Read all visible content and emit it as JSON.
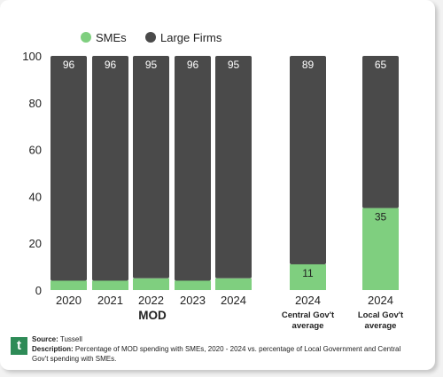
{
  "colors": {
    "sme": "#7fcf7f",
    "large": "#4a4a4a",
    "label_on_dark": "#ffffff",
    "label_on_light": "#222222"
  },
  "chart_data": {
    "type": "bar",
    "stacked": true,
    "ylim": [
      0,
      100
    ],
    "yticks": [
      "0",
      "20",
      "40",
      "60",
      "80",
      "100"
    ],
    "legend": {
      "position": "top-left",
      "entries": [
        "SMEs",
        "Large Firms"
      ]
    },
    "categories": [
      "2020",
      "2021",
      "2022",
      "2023",
      "2024",
      "2024",
      "2024"
    ],
    "category_sublabels": [
      "",
      "",
      "",
      "",
      "",
      "Central Gov't average",
      "Local Gov't average"
    ],
    "group_label": "MOD",
    "series": [
      {
        "name": "SMEs",
        "values": [
          4,
          4,
          5,
          4,
          5,
          11,
          35
        ],
        "labels": [
          "",
          "",
          "",
          "",
          "",
          "11",
          "35"
        ]
      },
      {
        "name": "Large Firms",
        "values": [
          96,
          96,
          95,
          96,
          95,
          89,
          65
        ],
        "labels": [
          "96",
          "96",
          "95",
          "96",
          "95",
          "89",
          "65"
        ]
      }
    ]
  },
  "footer": {
    "logo_text": "t",
    "source_label": "Source:",
    "source_value": "Tussell",
    "description_label": "Description:",
    "description_value": "Percentage of MOD spending with SMEs, 2020 - 2024 vs. percentage of Local Government and Central Gov't spending with SMEs."
  }
}
